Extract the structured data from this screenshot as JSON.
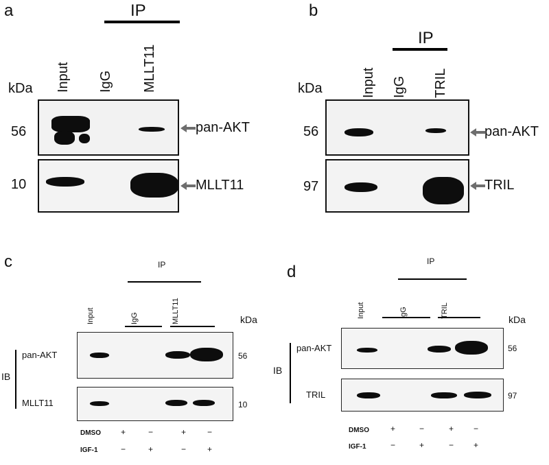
{
  "panels": {
    "a": {
      "letter": "a",
      "ip": "IP",
      "kda": "kDa",
      "lanes": [
        "Input",
        "IgG",
        "MLLT11"
      ],
      "rows": [
        {
          "mw": "56",
          "target": "pan-AKT"
        },
        {
          "mw": "10",
          "target": "MLLT11"
        }
      ]
    },
    "b": {
      "letter": "b",
      "ip": "IP",
      "kda": "kDa",
      "lanes": [
        "Input",
        "IgG",
        "TRIL"
      ],
      "rows": [
        {
          "mw": "56",
          "target": "pan-AKT"
        },
        {
          "mw": "97",
          "target": "TRIL"
        }
      ]
    },
    "c": {
      "letter": "c",
      "ip": "IP",
      "kda": "kDa",
      "ib": "IB",
      "lanes": [
        "Input",
        "IgG",
        "MLLT11"
      ],
      "rows": [
        {
          "mw": "56",
          "target": "pan-AKT"
        },
        {
          "mw": "10",
          "target": "MLLT11"
        }
      ],
      "treatments": [
        {
          "name": "DMSO",
          "signs": [
            "+",
            "−",
            "+",
            "−"
          ]
        },
        {
          "name": "IGF-1",
          "signs": [
            "−",
            "+",
            "−",
            "+"
          ]
        }
      ]
    },
    "d": {
      "letter": "d",
      "ip": "IP",
      "kda": "kDa",
      "ib": "IB",
      "lanes": [
        "Input",
        "IgG",
        "TRIL"
      ],
      "rows": [
        {
          "mw": "56",
          "target": "pan-AKT"
        },
        {
          "mw": "97",
          "target": "TRIL"
        }
      ],
      "treatments": [
        {
          "name": "DMSO",
          "signs": [
            "+",
            "−",
            "+",
            "−"
          ]
        },
        {
          "name": "IGF-1",
          "signs": [
            "−",
            "+",
            "−",
            "+"
          ]
        }
      ]
    }
  },
  "colors": {
    "blot_background": "#f2f2f2",
    "band": "#0d0d0d",
    "arrow": "#6e6e6e"
  }
}
